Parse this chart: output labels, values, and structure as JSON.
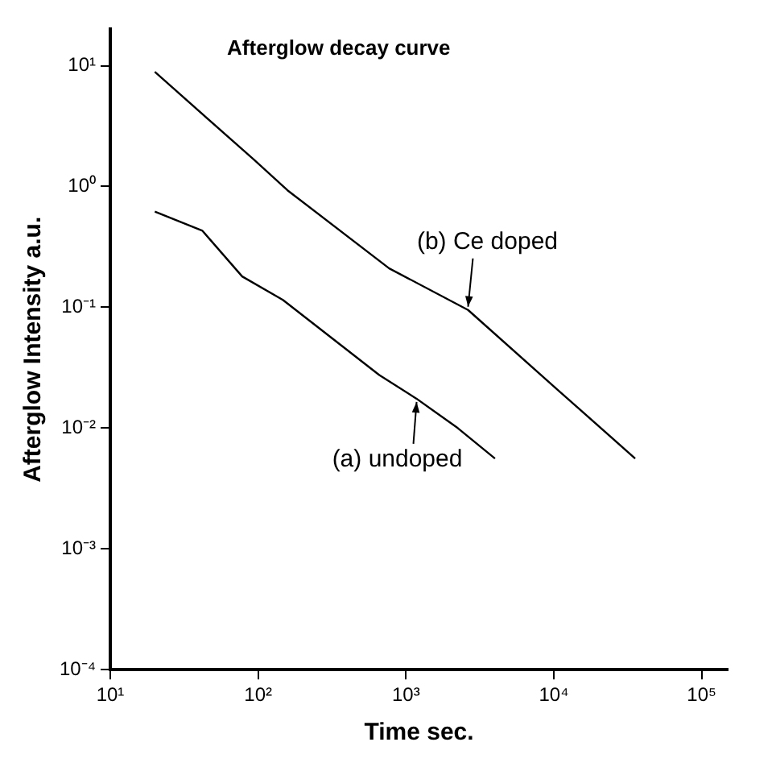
{
  "chart_data": {
    "type": "line",
    "title": "Afterglow decay curve",
    "xlabel": "Time sec.",
    "ylabel": "Afterglow Intensity a.u.",
    "log": "xy",
    "grid": false,
    "legend": false,
    "marker": "none",
    "line_style": "solid",
    "xlim": [
      10,
      150000
    ],
    "ylim": [
      0.0001,
      20
    ],
    "xticks": [
      {
        "value": 10,
        "label": "10¹"
      },
      {
        "value": 100,
        "label": "10²"
      },
      {
        "value": 1000,
        "label": "10³"
      },
      {
        "value": 10000,
        "label": "10⁴"
      },
      {
        "value": 100000,
        "label": "10⁵"
      }
    ],
    "yticks": [
      {
        "value": 0.0001,
        "label": "10⁻⁴"
      },
      {
        "value": 0.001,
        "label": "10⁻³"
      },
      {
        "value": 0.01,
        "label": "10⁻²"
      },
      {
        "value": 0.1,
        "label": "10⁻¹"
      },
      {
        "value": 1,
        "label": "10⁰"
      },
      {
        "value": 10,
        "label": "10¹"
      }
    ],
    "series": [
      {
        "color": "#000000",
        "x": [
          20,
          42,
          78,
          147,
          660,
          1180,
          2240,
          4000
        ],
        "values": [
          0.62,
          0.43,
          0.18,
          0.115,
          0.0275,
          0.0175,
          0.01,
          0.0056
        ]
      },
      {
        "color": "#000000",
        "x": [
          20,
          94,
          158,
          770,
          2630,
          10500,
          35500
        ],
        "values": [
          8.9,
          1.66,
          0.93,
          0.21,
          0.095,
          0.021,
          0.0056
        ]
      }
    ],
    "annotations": [
      {
        "text": "(a) undoped",
        "x": 1180,
        "y": 0.0175
      },
      {
        "text": "(b) Ce doped",
        "x": 2630,
        "y": 0.095
      }
    ]
  }
}
